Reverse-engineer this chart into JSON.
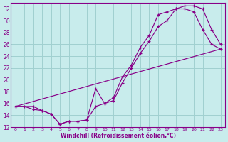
{
  "xlabel": "Windchill (Refroidissement éolien,°C)",
  "xlim": [
    -0.5,
    23.5
  ],
  "ylim": [
    12,
    33
  ],
  "xticks": [
    0,
    1,
    2,
    3,
    4,
    5,
    6,
    7,
    8,
    9,
    10,
    11,
    12,
    13,
    14,
    15,
    16,
    17,
    18,
    19,
    20,
    21,
    22,
    23
  ],
  "yticks": [
    12,
    14,
    16,
    18,
    20,
    22,
    24,
    26,
    28,
    30,
    32
  ],
  "bg_color": "#c8ecec",
  "grid_color": "#a0d0d0",
  "line_color": "#880088",
  "line1_x": [
    0,
    1,
    2,
    3,
    4,
    5,
    6,
    7,
    8,
    9,
    10,
    11,
    12,
    13,
    14,
    15,
    16,
    17,
    18,
    19,
    20,
    21,
    22,
    23
  ],
  "line1_y": [
    15.5,
    15.5,
    15.0,
    14.8,
    14.2,
    12.5,
    13.0,
    13.0,
    13.2,
    15.5,
    16.0,
    16.5,
    19.5,
    22.0,
    24.5,
    26.5,
    29.0,
    30.0,
    32.0,
    32.0,
    31.5,
    28.5,
    26.0,
    25.2
  ],
  "line2_x": [
    0,
    2,
    3,
    4,
    5,
    6,
    7,
    8,
    9,
    10,
    11,
    12,
    13,
    14,
    15,
    16,
    17,
    18,
    19,
    20,
    21,
    22,
    23
  ],
  "line2_y": [
    15.5,
    15.5,
    14.8,
    14.2,
    12.5,
    13.0,
    13.0,
    13.2,
    18.5,
    16.0,
    17.0,
    20.5,
    22.5,
    25.5,
    27.5,
    31.0,
    31.5,
    32.0,
    32.5,
    32.5,
    32.0,
    28.5,
    26.0
  ],
  "line3_x": [
    0,
    23
  ],
  "line3_y": [
    15.5,
    25.2
  ]
}
